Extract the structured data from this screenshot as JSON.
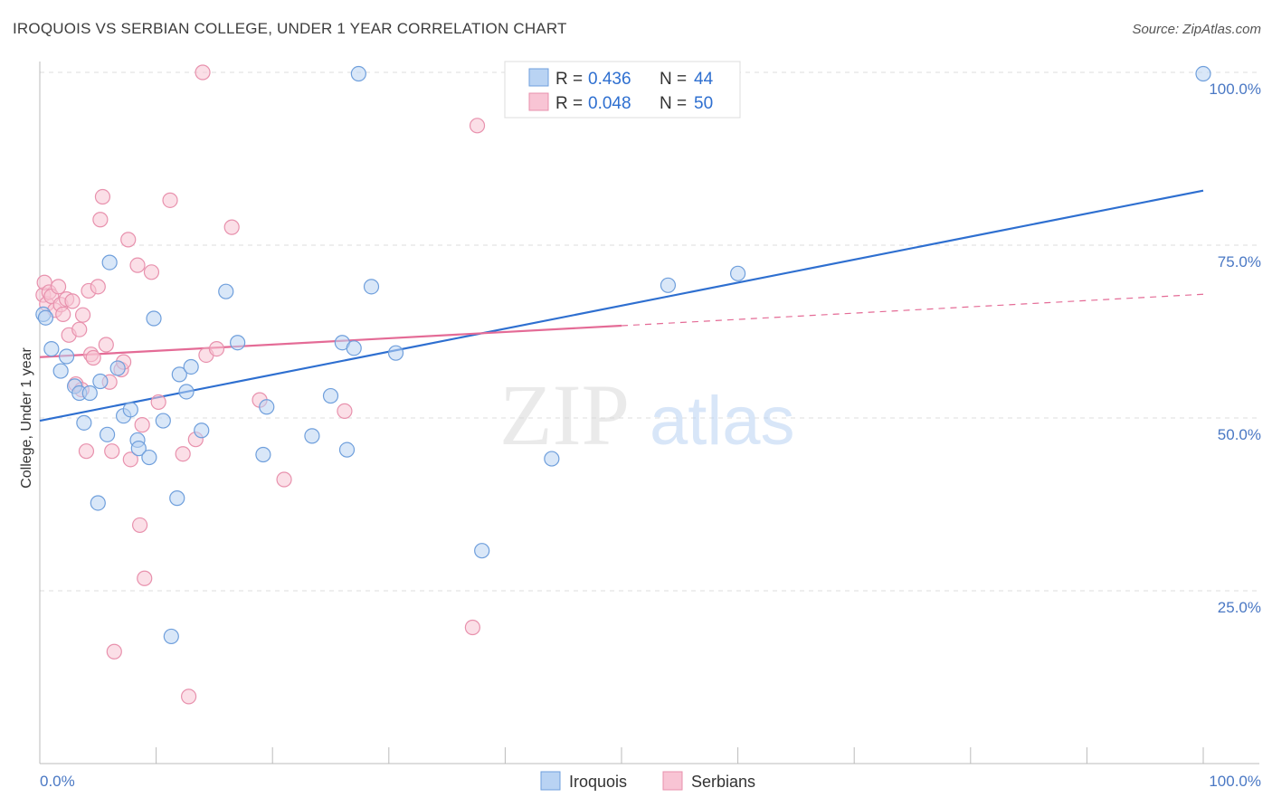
{
  "header": {
    "title": "IROQUOIS VS SERBIAN COLLEGE, UNDER 1 YEAR CORRELATION CHART",
    "source": "Source: ZipAtlas.com"
  },
  "watermark": {
    "zip": "ZIP",
    "atlas": "atlas"
  },
  "colors": {
    "iroquois_fill": "#b9d3f3",
    "iroquois_stroke": "#6f9fdc",
    "iroquois_line": "#2e6fd0",
    "serbians_fill": "#f8c4d4",
    "serbians_stroke": "#e891ad",
    "serbians_line": "#e46b96",
    "tick_text": "#4a78c4",
    "grid": "#dddddd"
  },
  "stats_legend": {
    "iroquois": {
      "r_label": "R = ",
      "r_value": "0.436",
      "n_label": "N = ",
      "n_value": "44"
    },
    "serbians": {
      "r_label": "R = ",
      "r_value": "0.048",
      "n_label": "N = ",
      "n_value": "50"
    }
  },
  "bottom_legend": {
    "iroquois": "Iroquois",
    "serbians": "Serbians"
  },
  "chart_data": {
    "type": "scatter",
    "title": "IROQUOIS VS SERBIAN COLLEGE, UNDER 1 YEAR CORRELATION CHART",
    "xlabel": "",
    "ylabel": "College, Under 1 year",
    "xlim": [
      0,
      100
    ],
    "ylim": [
      0,
      100
    ],
    "x_tick_labels": [
      "0.0%",
      "100.0%"
    ],
    "y_tick_labels": [
      "25.0%",
      "50.0%",
      "75.0%",
      "100.0%"
    ],
    "y_ticks": [
      25,
      50,
      75,
      100
    ],
    "grid": true,
    "legend_position": "top-center",
    "series": [
      {
        "name": "Iroquois",
        "r": 0.436,
        "n": 44,
        "trend": {
          "x": [
            0,
            100
          ],
          "y": [
            49.6,
            82.9
          ],
          "dashed_from": null
        },
        "points": [
          [
            0.3,
            65.0
          ],
          [
            1.0,
            60.0
          ],
          [
            1.8,
            56.8
          ],
          [
            2.3,
            58.9
          ],
          [
            3.0,
            54.6
          ],
          [
            3.4,
            53.6
          ],
          [
            3.8,
            49.3
          ],
          [
            4.3,
            53.6
          ],
          [
            5.0,
            37.7
          ],
          [
            5.2,
            55.3
          ],
          [
            5.8,
            47.6
          ],
          [
            6.0,
            72.5
          ],
          [
            6.7,
            57.2
          ],
          [
            7.2,
            50.3
          ],
          [
            7.8,
            51.2
          ],
          [
            8.4,
            46.8
          ],
          [
            8.5,
            45.6
          ],
          [
            9.4,
            44.3
          ],
          [
            9.8,
            64.4
          ],
          [
            10.6,
            49.6
          ],
          [
            11.3,
            18.4
          ],
          [
            11.8,
            38.4
          ],
          [
            12.0,
            56.3
          ],
          [
            12.6,
            53.8
          ],
          [
            13.0,
            57.4
          ],
          [
            13.9,
            48.2
          ],
          [
            16.0,
            68.3
          ],
          [
            17.0,
            60.9
          ],
          [
            19.2,
            44.7
          ],
          [
            19.5,
            51.6
          ],
          [
            23.4,
            47.4
          ],
          [
            25.0,
            53.2
          ],
          [
            26.0,
            60.9
          ],
          [
            26.4,
            45.4
          ],
          [
            27.0,
            60.1
          ],
          [
            27.4,
            99.8
          ],
          [
            28.5,
            69.0
          ],
          [
            30.6,
            59.4
          ],
          [
            38.0,
            30.8
          ],
          [
            44.0,
            44.1
          ],
          [
            54.0,
            69.2
          ],
          [
            60.0,
            70.9
          ],
          [
            100.0,
            99.8
          ],
          [
            0.5,
            64.5
          ]
        ]
      },
      {
        "name": "Serbians",
        "r": 0.048,
        "n": 50,
        "trend": {
          "x": [
            0,
            100
          ],
          "y": [
            58.8,
            67.9
          ],
          "dashed_from": 50
        },
        "points": [
          [
            0.3,
            67.8
          ],
          [
            0.4,
            69.6
          ],
          [
            0.6,
            66.5
          ],
          [
            0.8,
            68.2
          ],
          [
            1.0,
            67.6
          ],
          [
            1.3,
            65.6
          ],
          [
            1.6,
            69.0
          ],
          [
            1.8,
            66.4
          ],
          [
            2.0,
            65.0
          ],
          [
            2.3,
            67.2
          ],
          [
            2.5,
            62.0
          ],
          [
            2.8,
            66.9
          ],
          [
            3.1,
            54.9
          ],
          [
            3.4,
            62.8
          ],
          [
            3.6,
            54.1
          ],
          [
            3.7,
            64.9
          ],
          [
            4.0,
            45.2
          ],
          [
            4.2,
            68.4
          ],
          [
            4.4,
            59.2
          ],
          [
            4.6,
            58.7
          ],
          [
            5.0,
            69.0
          ],
          [
            5.2,
            78.7
          ],
          [
            5.4,
            82.0
          ],
          [
            5.7,
            60.6
          ],
          [
            6.0,
            55.2
          ],
          [
            6.2,
            45.2
          ],
          [
            6.4,
            16.2
          ],
          [
            7.0,
            57.0
          ],
          [
            7.2,
            58.1
          ],
          [
            7.6,
            75.8
          ],
          [
            7.8,
            44.0
          ],
          [
            8.4,
            72.1
          ],
          [
            8.6,
            34.5
          ],
          [
            8.8,
            49.0
          ],
          [
            9.0,
            26.8
          ],
          [
            9.6,
            71.1
          ],
          [
            10.2,
            52.3
          ],
          [
            11.2,
            81.5
          ],
          [
            12.3,
            44.8
          ],
          [
            12.8,
            9.7
          ],
          [
            13.4,
            46.9
          ],
          [
            14.0,
            100.0
          ],
          [
            14.3,
            59.1
          ],
          [
            15.2,
            60.0
          ],
          [
            16.5,
            77.6
          ],
          [
            18.9,
            52.6
          ],
          [
            21.0,
            41.1
          ],
          [
            26.2,
            51.0
          ],
          [
            37.2,
            19.7
          ],
          [
            37.6,
            92.3
          ]
        ]
      }
    ]
  }
}
